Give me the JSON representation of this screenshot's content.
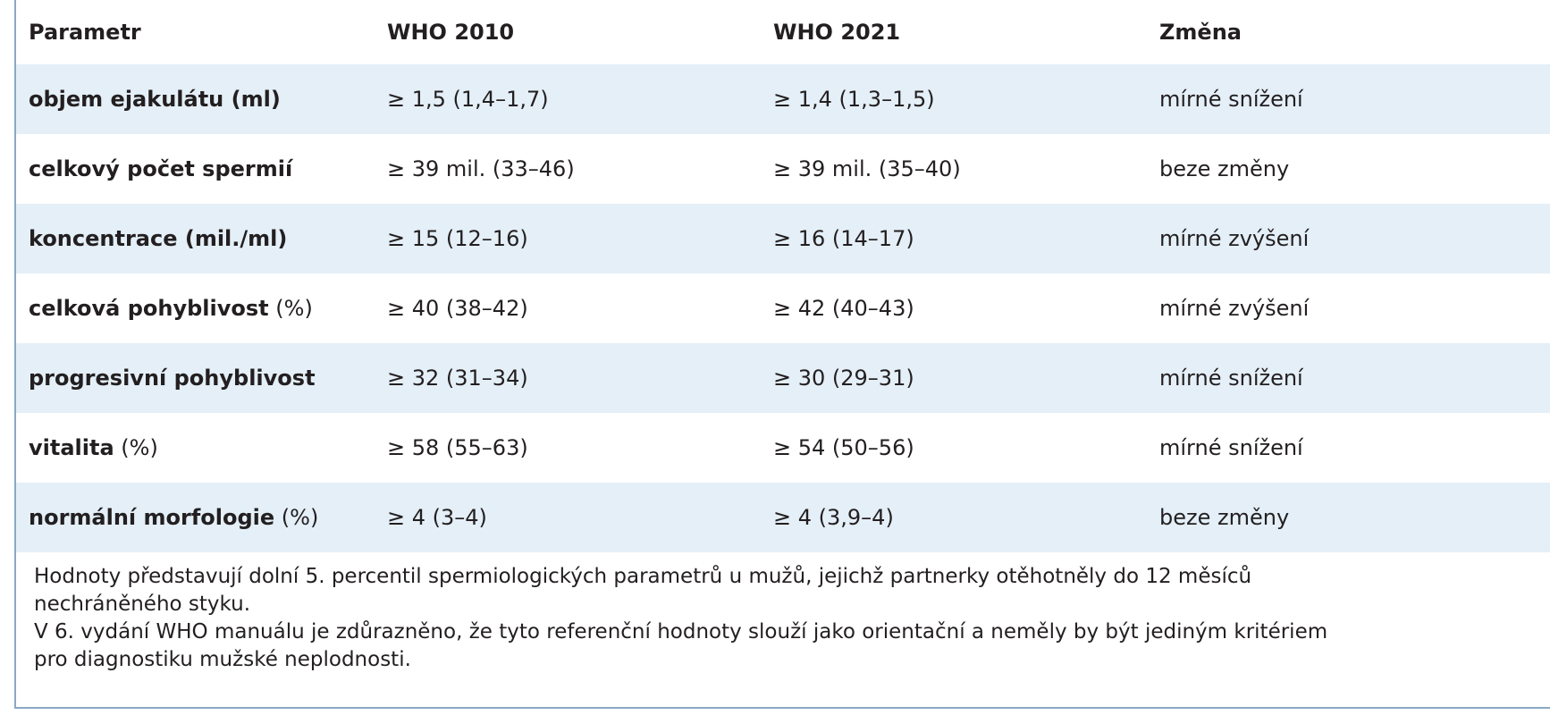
{
  "table": {
    "headers": [
      "Parametr",
      "WHO 2010",
      "WHO 2021",
      "Změna"
    ],
    "rows": [
      {
        "param": "objem ejakulátu (ml)",
        "param_bold": "objem ejakulátu (ml)",
        "param_unit": "",
        "who2010": "≥ 1,5 (1,4–1,7)",
        "who2021": "≥ 1,4 (1,3–1,5)",
        "change": "mírné snížení"
      },
      {
        "param": "celkový počet spermií",
        "param_bold": "celkový počet spermií",
        "param_unit": "",
        "who2010": "≥ 39 mil. (33–46)",
        "who2021": "≥ 39 mil. (35–40)",
        "change": "beze změny"
      },
      {
        "param": "koncentrace (mil./ml)",
        "param_bold": "koncentrace (mil./ml)",
        "param_unit": "",
        "who2010": "≥ 15 (12–16)",
        "who2021": "≥ 16 (14–17)",
        "change": "mírné zvýšení"
      },
      {
        "param": "celková pohyblivost (%)",
        "param_bold": "celková pohyblivost",
        "param_unit": " (%)",
        "who2010": "≥ 40 (38–42)",
        "who2021": "≥ 42 (40–43)",
        "change": "mírné zvýšení"
      },
      {
        "param": "progresivní pohyblivost",
        "param_bold": "progresivní pohyblivost",
        "param_unit": "",
        "who2010": "≥ 32 (31–34)",
        "who2021": "≥ 30 (29–31)",
        "change": "mírné snížení"
      },
      {
        "param": "vitalita (%)",
        "param_bold": "vitalita",
        "param_unit": " (%)",
        "who2010": "≥ 58 (55–63)",
        "who2021": "≥ 54 (50–56)",
        "change": "mírné snížení"
      },
      {
        "param": "normální morfologie (%)",
        "param_bold": "normální morfologie",
        "param_unit": " (%)",
        "who2010": "≥ 4 (3–4)",
        "who2021": "≥ 4 (3,9–4)",
        "change": "beze změny"
      }
    ]
  },
  "notes": {
    "line1": "Hodnoty představují dolní 5. percentil spermiologických parametrů u mužů, jejichž partnerky otěhotněly do 12 měsíců",
    "line2": "nechráněného styku.",
    "line3": "V 6. vydání WHO manuálu je zdůrazněno, že tyto referenční hodnoty slouží jako orientační a neměly by být jediným kritériem",
    "line4": "pro diagnostiku mužské neplodnosti."
  },
  "colors": {
    "stripe": "#e4eff8",
    "border": "#8aa9c4",
    "text": "#231f20"
  }
}
